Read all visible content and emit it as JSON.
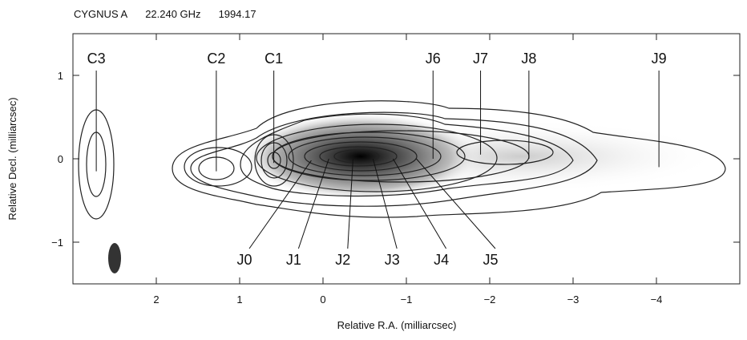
{
  "chart_data": {
    "type": "contour",
    "title_parts": [
      "CYGNUS A",
      "22.240 GHz",
      "1994.17"
    ],
    "x_label": "Relative R.A. (milliarcsec)",
    "y_label": "Relative Decl. (milliarcsec)",
    "xlim": [
      3,
      -5
    ],
    "ylim": [
      -1.5,
      1.5
    ],
    "xticks": [
      2,
      1,
      0,
      {
        "value": -1,
        "label": "−1"
      },
      {
        "value": -2,
        "label": "−2"
      },
      {
        "value": -3,
        "label": "−3"
      },
      {
        "value": -4,
        "label": "−4"
      }
    ],
    "yticks": [
      {
        "value": -1,
        "label": "−1"
      },
      0,
      1
    ],
    "annotations": [
      {
        "text": "C3",
        "x": 2.72,
        "y": -0.15,
        "side": "top"
      },
      {
        "text": "C2",
        "x": 1.28,
        "y": -0.15,
        "side": "top"
      },
      {
        "text": "C1",
        "x": 0.59,
        "y": -0.05,
        "side": "top"
      },
      {
        "text": "J6",
        "x": -1.32,
        "y": 0,
        "side": "top"
      },
      {
        "text": "J7",
        "x": -1.89,
        "y": 0.05,
        "side": "top"
      },
      {
        "text": "J8",
        "x": -2.47,
        "y": 0,
        "side": "top"
      },
      {
        "text": "J9",
        "x": -4.03,
        "y": -0.1,
        "side": "top"
      },
      {
        "text": "J0",
        "x": 0.14,
        "y": -0.02,
        "side": "bottom"
      },
      {
        "text": "J1",
        "x": -0.07,
        "y": 0,
        "side": "bottom"
      },
      {
        "text": "J2",
        "x": -0.36,
        "y": 0,
        "side": "bottom"
      },
      {
        "text": "J3",
        "x": -0.6,
        "y": 0,
        "side": "bottom"
      },
      {
        "text": "J4",
        "x": -0.84,
        "y": 0,
        "side": "bottom"
      },
      {
        "text": "J5",
        "x": -1.12,
        "y": 0,
        "side": "bottom"
      }
    ]
  }
}
